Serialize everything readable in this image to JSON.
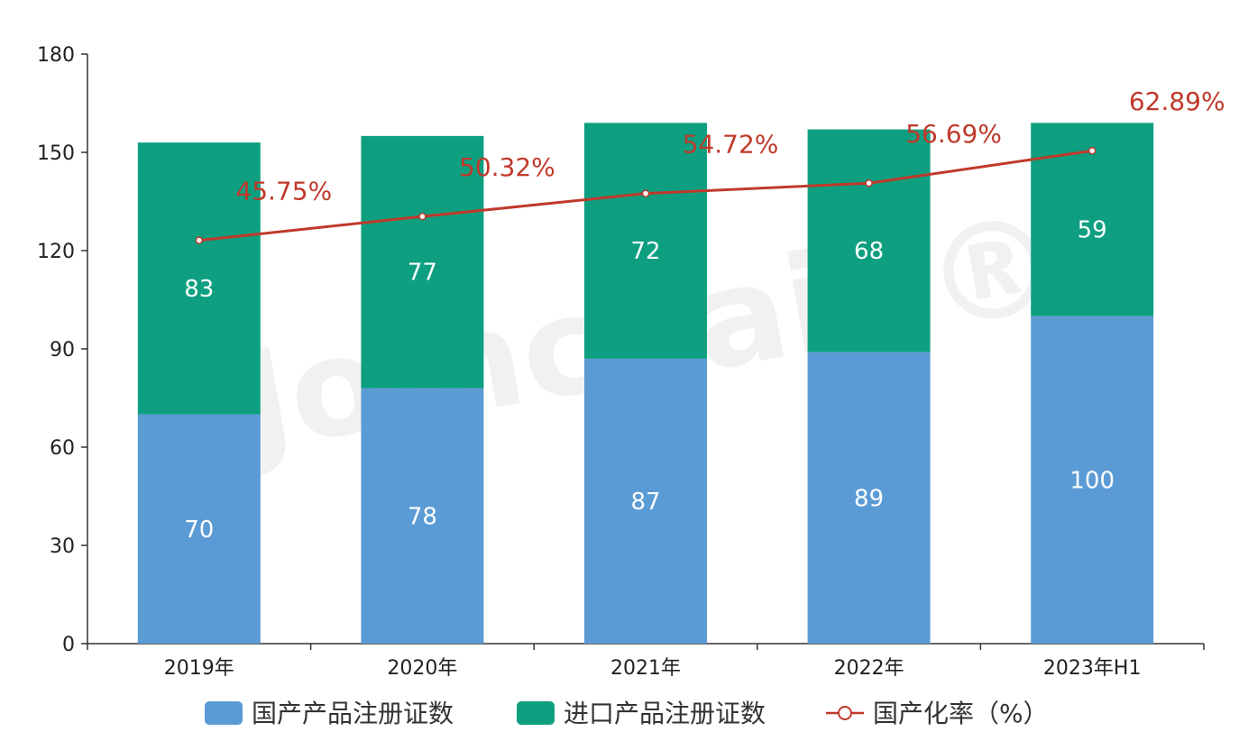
{
  "chart_data": {
    "type": "bar",
    "stacked": true,
    "categories": [
      "2019年",
      "2020年",
      "2021年",
      "2022年",
      "2023年H1"
    ],
    "series": [
      {
        "name": "国产产品注册证数",
        "values": [
          70,
          78,
          87,
          89,
          100
        ],
        "color": "#5b9bd5"
      },
      {
        "name": "进口产品注册证数",
        "values": [
          83,
          77,
          72,
          68,
          59
        ],
        "color": "#0e9f81"
      }
    ],
    "line_series": {
      "name": "国产化率（%）",
      "values": [
        45.75,
        50.32,
        54.72,
        56.69,
        62.89
      ],
      "labels": [
        "45.75%",
        "50.32%",
        "54.72%",
        "56.69%",
        "62.89%"
      ],
      "color": "#c0392b"
    },
    "ylim": [
      0,
      180
    ],
    "yticks": [
      0,
      30,
      60,
      90,
      120,
      150,
      180
    ],
    "legend_position": "bottom",
    "watermark": "Joinchain®"
  }
}
